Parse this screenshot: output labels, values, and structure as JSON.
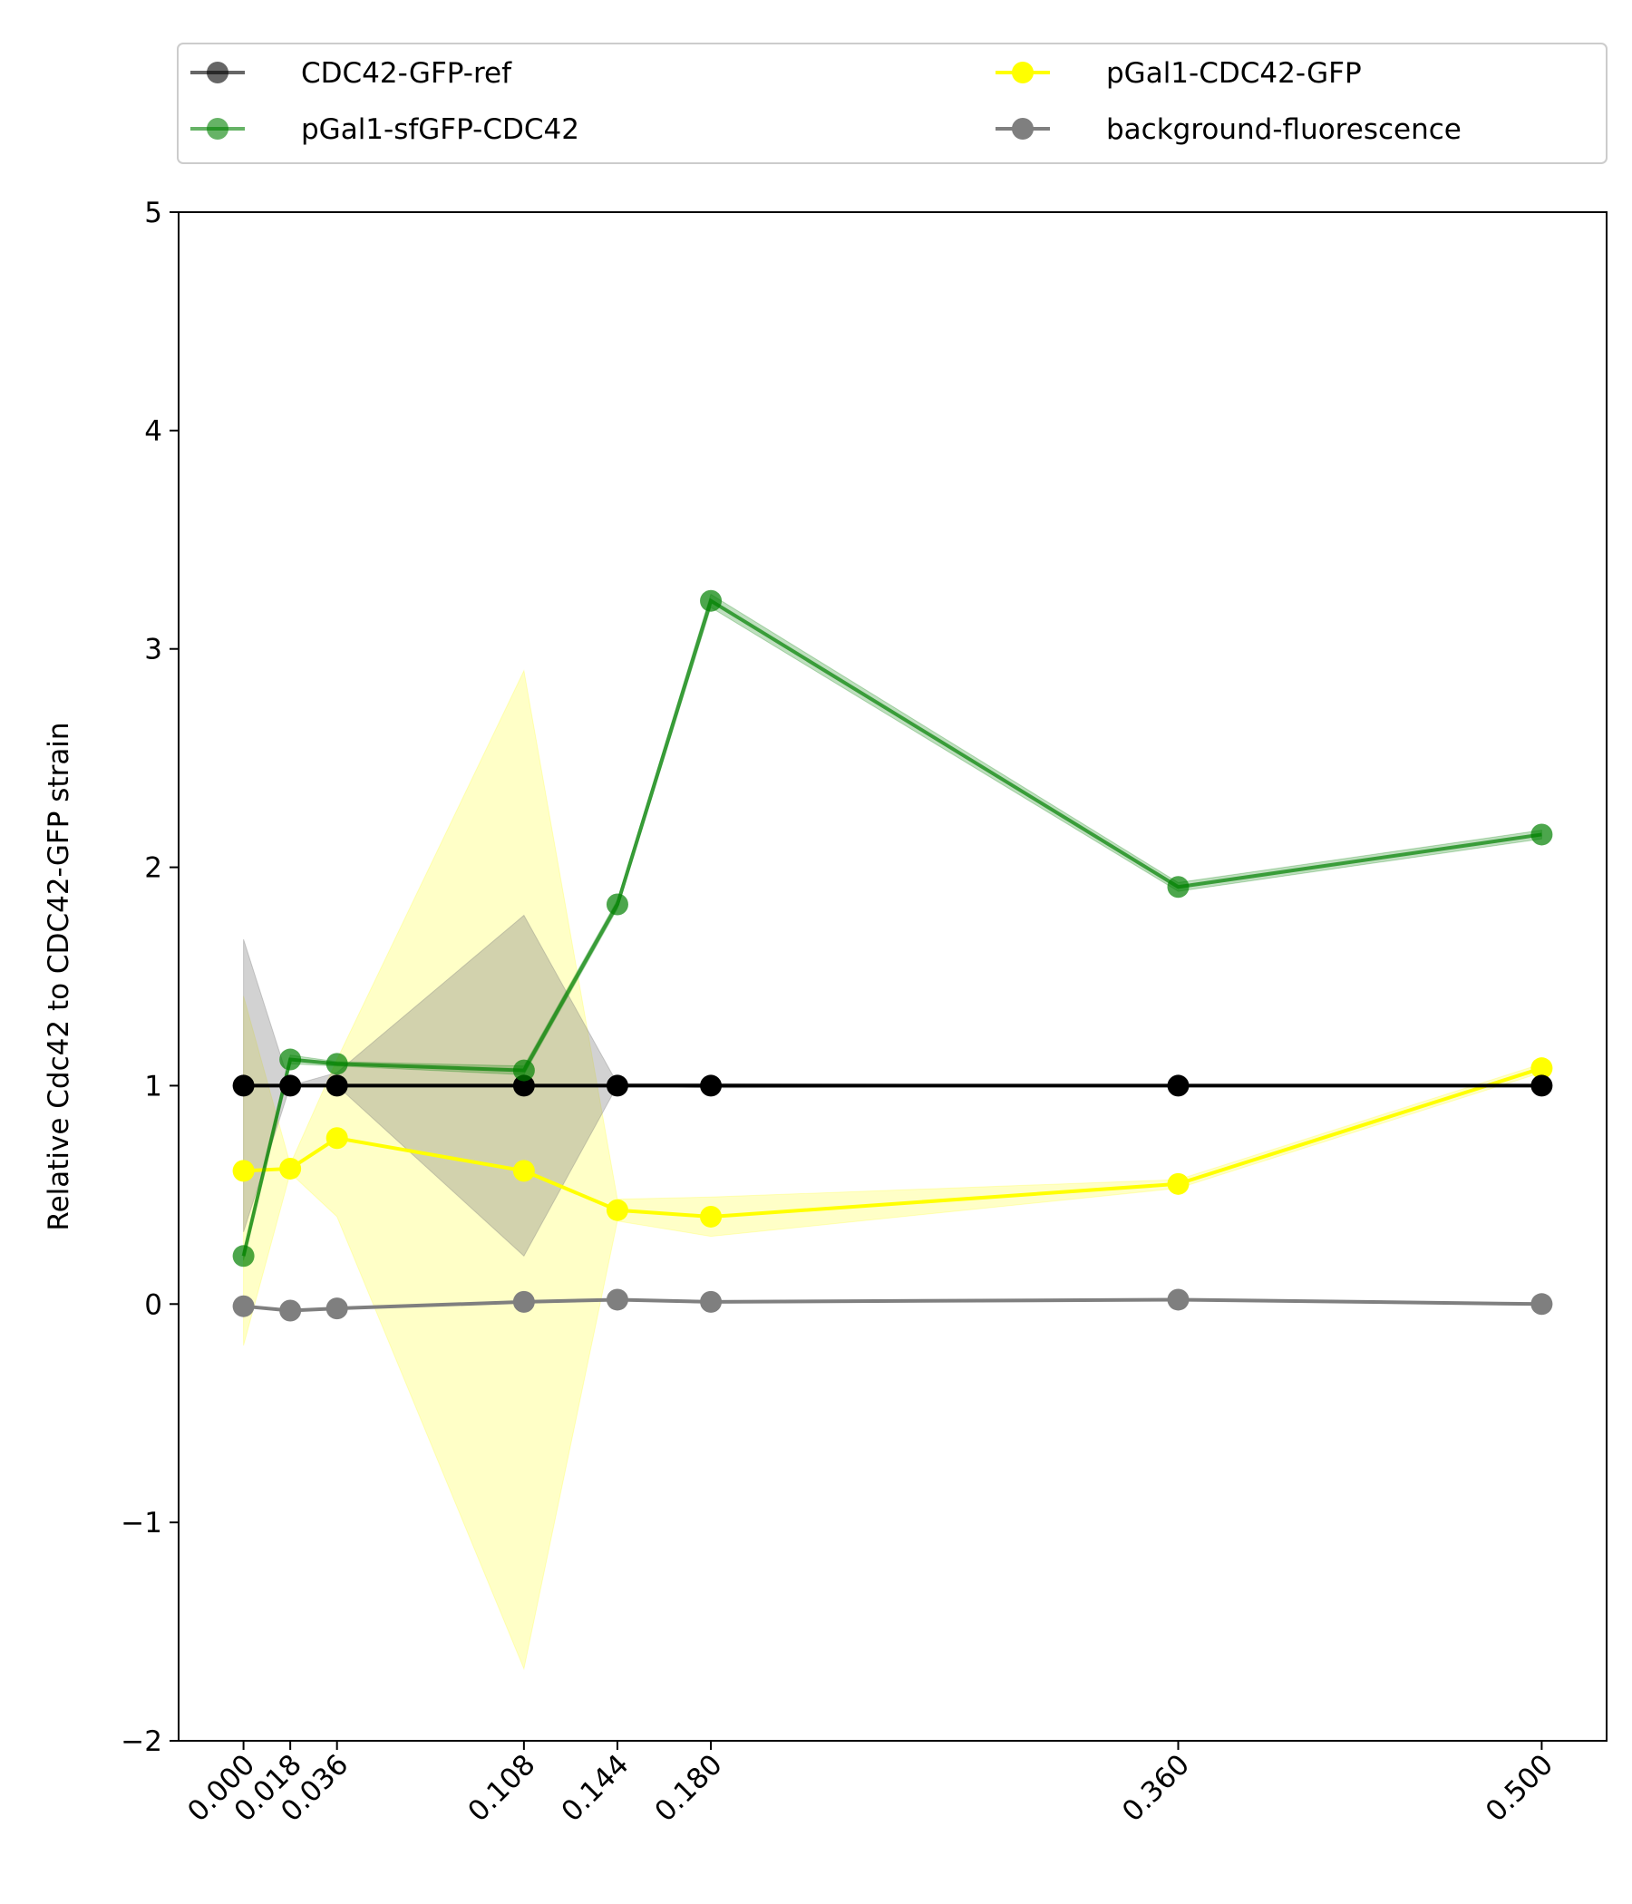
{
  "chart_data": {
    "type": "line",
    "title": "",
    "xlabel": "",
    "ylabel": "Relative Cdc42 to CDC42-GFP strain",
    "x": [
      0.0,
      0.018,
      0.036,
      0.108,
      0.144,
      0.18,
      0.36,
      0.5
    ],
    "xticks": [
      "0.000",
      "0.018",
      "0.036",
      "0.108",
      "0.144",
      "0.180",
      "0.360",
      "0.500"
    ],
    "xlim": [
      -0.025,
      0.525
    ],
    "ylim": [
      -2,
      5
    ],
    "yticks": [
      "−2",
      "−1",
      "0",
      "1",
      "2",
      "3",
      "4",
      "5"
    ],
    "grid": false,
    "legend_position": "top (above plot, two columns)",
    "series": [
      {
        "name": "CDC42-GFP-ref",
        "color": "#000000",
        "line_alpha": 1.0,
        "legend_alpha": 0.6,
        "values": [
          1.0,
          1.0,
          1.0,
          1.0,
          1.0,
          1.0,
          1.0,
          1.0
        ],
        "band_lower": [
          0.33,
          1.0,
          1.0,
          0.22,
          1.0,
          0.99,
          1.0,
          1.0
        ],
        "band_upper": [
          1.67,
          1.0,
          1.06,
          1.78,
          1.01,
          1.01,
          1.0,
          1.0
        ],
        "band_color": "#7f7f7f",
        "band_alpha": 0.35
      },
      {
        "name": "pGal1-sfGFP-CDC42",
        "color": "#008000",
        "line_alpha": 0.7,
        "legend_alpha": 0.6,
        "values": [
          0.22,
          1.12,
          1.1,
          1.07,
          1.83,
          3.22,
          1.91,
          2.15
        ],
        "band_lower": [
          0.2,
          1.1,
          1.09,
          1.05,
          1.81,
          3.19,
          1.89,
          2.13
        ],
        "band_upper": [
          0.24,
          1.14,
          1.11,
          1.09,
          1.85,
          3.25,
          1.93,
          2.17
        ],
        "band_color": "#008000",
        "band_alpha": 0.25
      },
      {
        "name": "pGal1-CDC42-GFP",
        "color": "#ffff00",
        "line_alpha": 1.0,
        "legend_alpha": 1.0,
        "values": [
          0.61,
          0.62,
          0.76,
          0.61,
          0.43,
          0.4,
          0.55,
          1.08
        ],
        "band_lower": [
          -0.19,
          0.6,
          0.4,
          -1.67,
          0.38,
          0.31,
          0.53,
          1.06
        ],
        "band_upper": [
          1.41,
          0.64,
          1.12,
          2.9,
          0.48,
          0.49,
          0.57,
          1.1
        ],
        "band_color": "#ffff00",
        "band_alpha": 0.22
      },
      {
        "name": "background-fluorescence",
        "color": "#7f7f7f",
        "line_alpha": 1.0,
        "legend_alpha": 1.0,
        "values": [
          -0.01,
          -0.03,
          -0.02,
          0.01,
          0.02,
          0.01,
          0.02,
          0.0
        ],
        "band_lower": [
          -0.01,
          -0.03,
          -0.02,
          0.01,
          0.02,
          0.01,
          0.02,
          0.0
        ],
        "band_upper": [
          -0.01,
          -0.03,
          -0.02,
          0.01,
          0.02,
          0.01,
          0.02,
          0.0
        ],
        "band_color": "#7f7f7f",
        "band_alpha": 0.0
      }
    ],
    "draw_order": [
      "pGal1-CDC42-GFP",
      "CDC42-GFP-ref",
      "pGal1-sfGFP-CDC42",
      "background-fluorescence"
    ],
    "legend_order": [
      "CDC42-GFP-ref",
      "pGal1-sfGFP-CDC42",
      "pGal1-CDC42-GFP",
      "background-fluorescence"
    ]
  }
}
